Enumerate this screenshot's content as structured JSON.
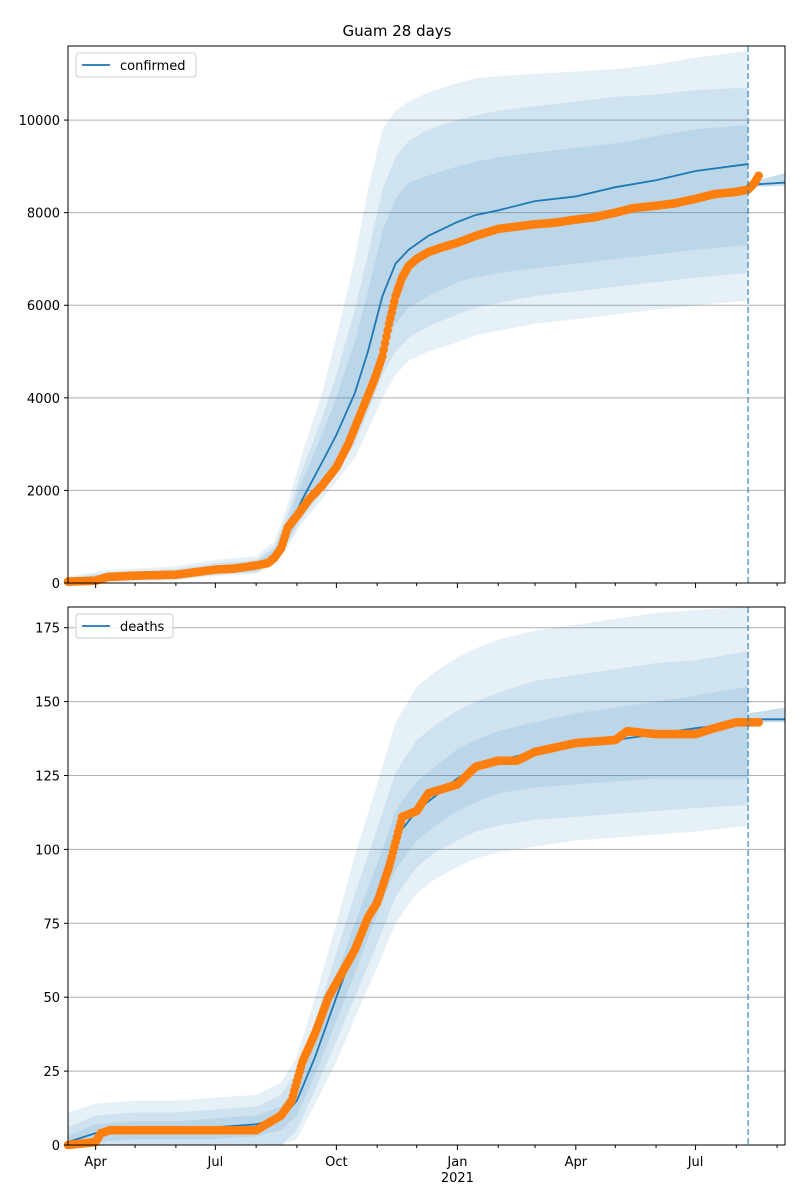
{
  "chart_data": [
    {
      "type": "line",
      "title": "Guam 28 days",
      "legend": {
        "entries": [
          "confirmed"
        ],
        "placement": "top-left"
      },
      "grid": "horizontal",
      "xlim": [
        "2020-03-11",
        "2021-09-07"
      ],
      "ylim": [
        0,
        11600
      ],
      "yticks": [
        0,
        2000,
        4000,
        6000,
        8000,
        10000
      ],
      "xticks_shown": false,
      "vline": {
        "date": "2021-08-10",
        "style": "dashed"
      },
      "model": {
        "name": "confirmed",
        "x": [
          "2020-03-11",
          "2020-04-10",
          "2020-06-01",
          "2020-07-01",
          "2020-08-01",
          "2020-08-15",
          "2020-08-25",
          "2020-09-05",
          "2020-09-20",
          "2020-10-01",
          "2020-10-15",
          "2020-10-25",
          "2020-11-05",
          "2020-11-15",
          "2020-11-25",
          "2020-12-10",
          "2021-01-01",
          "2021-01-15",
          "2021-02-01",
          "2021-03-01",
          "2021-04-01",
          "2021-05-01",
          "2021-06-01",
          "2021-07-01",
          "2021-08-10"
        ],
        "y": [
          50,
          130,
          180,
          290,
          350,
          600,
          1100,
          1800,
          2600,
          3200,
          4100,
          5000,
          6200,
          6900,
          7200,
          7500,
          7800,
          7950,
          8050,
          8250,
          8350,
          8550,
          8700,
          8900,
          9050
        ],
        "bands": [
          {
            "lower": [
              10,
              60,
              100,
              200,
              260,
              480,
              900,
              1500,
              2100,
              2600,
              3300,
              4000,
              5000,
              5600,
              5950,
              6200,
              6500,
              6600,
              6700,
              6800,
              6900,
              7000,
              7100,
              7200,
              7300
            ],
            "upper": [
              90,
              200,
              260,
              380,
              450,
              720,
              1350,
              2200,
              3200,
              4000,
              5200,
              6300,
              7600,
              8300,
              8650,
              8800,
              9000,
              9100,
              9200,
              9300,
              9400,
              9500,
              9650,
              9800,
              9900
            ]
          },
          {
            "lower": [
              5,
              40,
              80,
              180,
              230,
              440,
              850,
              1400,
              1950,
              2400,
              3000,
              3700,
              4500,
              5000,
              5300,
              5550,
              5800,
              5950,
              6050,
              6200,
              6300,
              6400,
              6500,
              6600,
              6700
            ],
            "upper": [
              110,
              230,
              300,
              430,
              500,
              800,
              1500,
              2450,
              3550,
              4500,
              5900,
              7100,
              8500,
              9200,
              9550,
              9800,
              10000,
              10100,
              10200,
              10300,
              10400,
              10500,
              10550,
              10650,
              10700
            ]
          },
          {
            "lower": [
              0,
              20,
              60,
              150,
              200,
              400,
              780,
              1300,
              1800,
              2200,
              2700,
              3300,
              4000,
              4500,
              4800,
              5000,
              5200,
              5350,
              5450,
              5600,
              5700,
              5800,
              5900,
              6000,
              6100
            ],
            "upper": [
              140,
              280,
              360,
              500,
              580,
              900,
              1700,
              2800,
              4100,
              5300,
              7000,
              8500,
              9800,
              10200,
              10400,
              10600,
              10800,
              10900,
              10950,
              11000,
              11050,
              11100,
              11200,
              11350,
              11500
            ]
          }
        ]
      },
      "forecast": {
        "x": [
          "2021-08-10",
          "2021-09-07"
        ],
        "y": [
          8600,
          8650
        ],
        "lower": [
          8550,
          8580
        ],
        "upper": [
          8650,
          8850
        ]
      },
      "observed": {
        "x": [
          "2020-03-11",
          "2020-04-01",
          "2020-04-10",
          "2020-05-01",
          "2020-06-01",
          "2020-07-01",
          "2020-07-15",
          "2020-08-01",
          "2020-08-10",
          "2020-08-15",
          "2020-08-20",
          "2020-08-25",
          "2020-09-01",
          "2020-09-10",
          "2020-09-20",
          "2020-10-01",
          "2020-10-10",
          "2020-10-20",
          "2020-10-30",
          "2020-11-05",
          "2020-11-10",
          "2020-11-15",
          "2020-11-20",
          "2020-11-25",
          "2020-12-01",
          "2020-12-10",
          "2020-12-20",
          "2021-01-01",
          "2021-01-15",
          "2021-02-01",
          "2021-02-15",
          "2021-03-01",
          "2021-03-15",
          "2021-04-01",
          "2021-04-15",
          "2021-05-01",
          "2021-05-15",
          "2021-06-01",
          "2021-06-15",
          "2021-07-01",
          "2021-07-15",
          "2021-08-01",
          "2021-08-10",
          "2021-08-15",
          "2021-08-18"
        ],
        "y": [
          30,
          50,
          130,
          160,
          180,
          290,
          310,
          380,
          430,
          550,
          750,
          1200,
          1450,
          1800,
          2100,
          2500,
          3000,
          3700,
          4400,
          4900,
          5600,
          6200,
          6600,
          6850,
          7000,
          7150,
          7250,
          7350,
          7500,
          7650,
          7700,
          7750,
          7780,
          7850,
          7900,
          8000,
          8100,
          8150,
          8200,
          8300,
          8400,
          8450,
          8500,
          8650,
          8800
        ]
      }
    },
    {
      "type": "line",
      "title": "",
      "legend": {
        "entries": [
          "deaths"
        ],
        "placement": "top-left"
      },
      "grid": "horizontal",
      "xlim": [
        "2020-03-11",
        "2021-09-07"
      ],
      "ylim": [
        0,
        182
      ],
      "yticks": [
        0,
        25,
        50,
        75,
        100,
        125,
        150,
        175
      ],
      "xticks": [
        {
          "date": "2020-04-01",
          "label": "Apr"
        },
        {
          "date": "2020-07-01",
          "label": "Jul"
        },
        {
          "date": "2020-10-01",
          "label": "Oct"
        },
        {
          "date": "2021-01-01",
          "label": "Jan"
        },
        {
          "date": "2021-04-01",
          "label": "Apr"
        },
        {
          "date": "2021-07-01",
          "label": "Jul"
        }
      ],
      "xlabel_year": "2021",
      "vline": {
        "date": "2021-08-10",
        "style": "dashed"
      },
      "model": {
        "name": "deaths",
        "x": [
          "2020-03-11",
          "2020-04-01",
          "2020-05-01",
          "2020-06-01",
          "2020-07-01",
          "2020-08-01",
          "2020-08-20",
          "2020-09-01",
          "2020-09-15",
          "2020-10-01",
          "2020-10-15",
          "2020-11-01",
          "2020-11-15",
          "2020-12-01",
          "2020-12-15",
          "2021-01-01",
          "2021-01-15",
          "2021-02-01",
          "2021-03-01",
          "2021-04-01",
          "2021-05-01",
          "2021-06-01",
          "2021-07-01",
          "2021-08-10"
        ],
        "y": [
          1,
          4,
          5,
          5,
          6,
          7,
          9,
          15,
          30,
          50,
          67,
          85,
          104,
          113,
          118,
          124,
          128,
          130,
          133,
          136,
          137,
          139,
          141,
          143
        ],
        "bands": [
          {
            "lower": [
              0,
              1,
              2,
              2,
              2,
              3,
              5,
              10,
              24,
              42,
              58,
              78,
              93,
              103,
              108,
              113,
              116,
              119,
              121,
              122,
              123,
              124,
              124,
              124
            ],
            "upper": [
              3,
              7,
              8,
              8,
              9,
              10,
              13,
              20,
              36,
              57,
              75,
              95,
              113,
              123,
              128,
              134,
              137,
              140,
              143,
              146,
              148,
              150,
              152,
              155
            ]
          },
          {
            "lower": [
              0,
              0,
              0,
              0,
              0,
              0,
              0,
              5,
              19,
              35,
              50,
              68,
              84,
              94,
              99,
              103,
              106,
              108,
              110,
              111,
              112,
              113,
              114,
              115
            ],
            "upper": [
              6,
              10,
              11,
              11,
              12,
              13,
              17,
              25,
              42,
              65,
              85,
              107,
              126,
              137,
              142,
              147,
              150,
              153,
              157,
              159,
              161,
              163,
              164,
              167
            ]
          },
          {
            "lower": [
              0,
              0,
              0,
              0,
              0,
              0,
              0,
              2,
              14,
              28,
              43,
              60,
              75,
              85,
              90,
              94,
              97,
              99,
              101,
              103,
              104,
              105,
              106,
              108
            ],
            "upper": [
              11,
              14,
              15,
              15,
              16,
              17,
              21,
              30,
              50,
              75,
              98,
              122,
              143,
              155,
              160,
              165,
              168,
              171,
              174,
              176,
              178,
              180,
              181,
              182
            ]
          }
        ]
      },
      "forecast": {
        "x": [
          "2021-08-10",
          "2021-09-07"
        ],
        "y": [
          144,
          144
        ],
        "lower": [
          143,
          143
        ],
        "upper": [
          146,
          148
        ]
      },
      "observed": {
        "x": [
          "2020-03-11",
          "2020-04-01",
          "2020-04-05",
          "2020-04-12",
          "2020-05-01",
          "2020-06-01",
          "2020-07-01",
          "2020-08-01",
          "2020-08-20",
          "2020-08-28",
          "2020-09-05",
          "2020-09-15",
          "2020-09-25",
          "2020-10-05",
          "2020-10-15",
          "2020-10-25",
          "2020-11-01",
          "2020-11-10",
          "2020-11-20",
          "2020-12-01",
          "2020-12-10",
          "2021-01-01",
          "2021-01-15",
          "2021-02-01",
          "2021-02-15",
          "2021-03-01",
          "2021-04-01",
          "2021-05-01",
          "2021-05-10",
          "2021-06-01",
          "2021-07-01",
          "2021-07-15",
          "2021-08-01",
          "2021-08-18"
        ],
        "y": [
          0,
          1,
          4,
          5,
          5,
          5,
          5,
          5,
          10,
          15,
          28,
          38,
          50,
          58,
          66,
          77,
          82,
          94,
          111,
          113,
          119,
          122,
          128,
          130,
          130,
          133,
          136,
          137,
          140,
          139,
          139,
          141,
          143,
          143
        ]
      }
    }
  ]
}
